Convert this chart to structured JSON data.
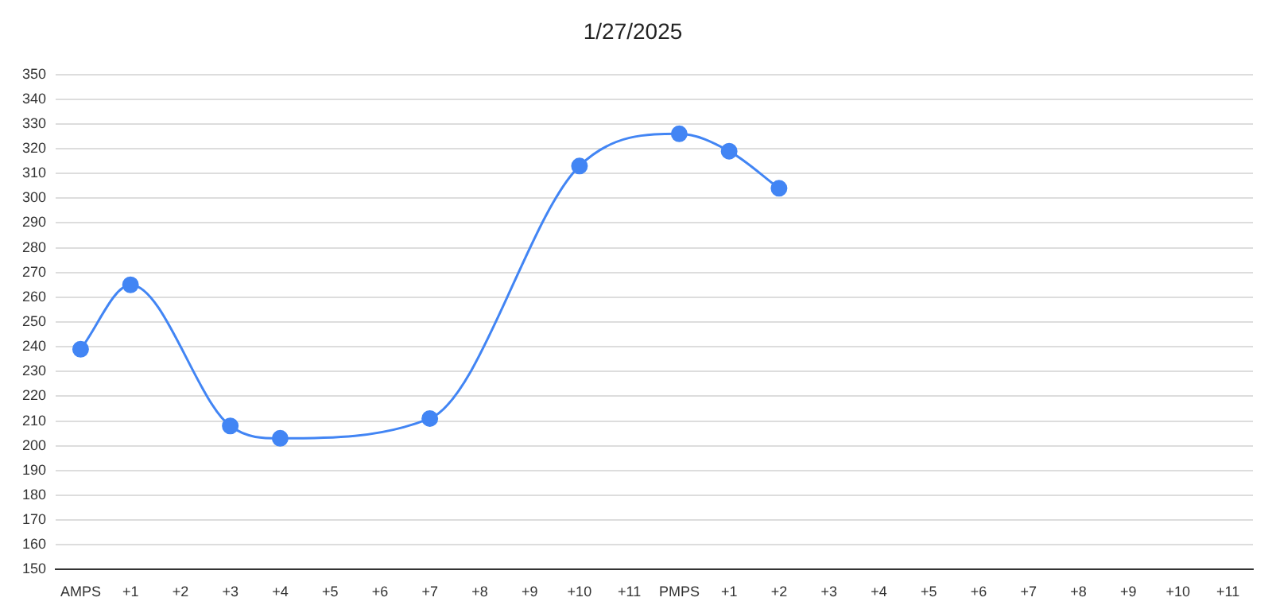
{
  "chart_data": {
    "type": "line",
    "title": "1/27/2025",
    "categories": [
      "AMPS",
      "+1",
      "+2",
      "+3",
      "+4",
      "+5",
      "+6",
      "+7",
      "+8",
      "+9",
      "+10",
      "+11",
      "PMPS",
      "+1",
      "+2",
      "+3",
      "+4",
      "+5",
      "+6",
      "+7",
      "+8",
      "+9",
      "+10",
      "+11"
    ],
    "series": [
      {
        "color": "#4285f4",
        "values": [
          239,
          265,
          null,
          208,
          203,
          null,
          null,
          211,
          null,
          null,
          313,
          null,
          326,
          319,
          304,
          null,
          null,
          null,
          null,
          null,
          null,
          null,
          null,
          null
        ]
      }
    ],
    "ylim": [
      150,
      350
    ],
    "yticks": [
      150,
      160,
      170,
      180,
      190,
      200,
      210,
      220,
      230,
      240,
      250,
      260,
      270,
      280,
      290,
      300,
      310,
      320,
      330,
      340,
      350
    ],
    "grid": "y",
    "legend": false,
    "marker": "circle",
    "line_style": "solid"
  }
}
